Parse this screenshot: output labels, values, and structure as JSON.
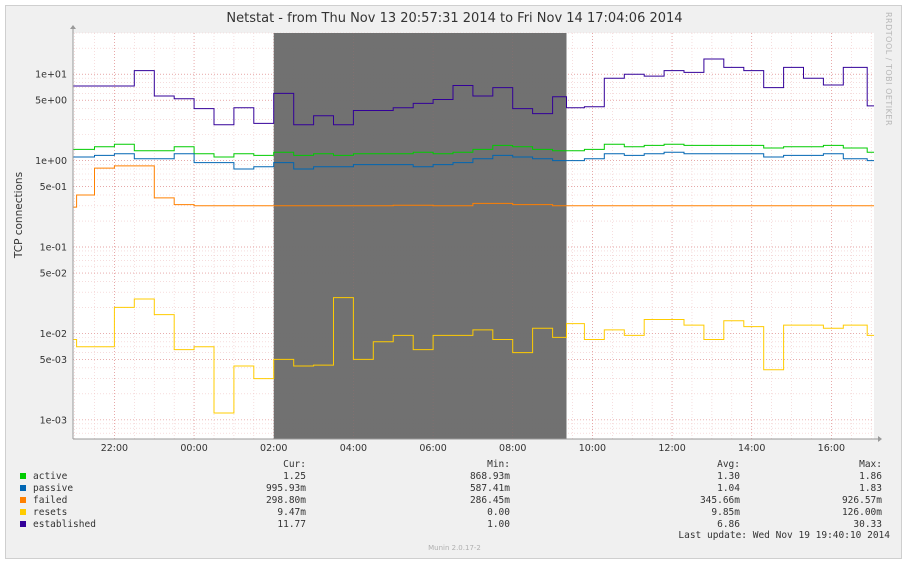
{
  "title": "Netstat - from Thu Nov 13 20:57:31 2014 to Fri Nov 14 17:04:06 2014",
  "watermark": "RRDTOOL / TOBI OETIKER",
  "footer": "Munin 2.0.17-2",
  "last_update": "Last update: Wed Nov 19 19:40:10 2014",
  "legend": {
    "headers": {
      "cur": "Cur:",
      "min": "Min:",
      "avg": "Avg:",
      "max": "Max:"
    },
    "rows": [
      {
        "name": "active",
        "color": "#00cc00",
        "cur": "1.25",
        "min": "868.93m",
        "avg": "1.30",
        "max": "1.86"
      },
      {
        "name": "passive",
        "color": "#0066b3",
        "cur": "995.93m",
        "min": "587.41m",
        "avg": "1.04",
        "max": "1.83"
      },
      {
        "name": "failed",
        "color": "#ff8000",
        "cur": "298.80m",
        "min": "286.45m",
        "avg": "345.66m",
        "max": "926.57m"
      },
      {
        "name": "resets",
        "color": "#ffcc00",
        "cur": "9.47m",
        "min": "0.00",
        "avg": "9.85m",
        "max": "126.00m"
      },
      {
        "name": "established",
        "color": "#330099",
        "cur": "11.77",
        "min": "1.00",
        "avg": "6.86",
        "max": "30.33"
      }
    ]
  },
  "chart_data": {
    "type": "line",
    "title": "Netstat - from Thu Nov 13 20:57:31 2014 to Fri Nov 14 17:04:06 2014",
    "ylabel": "TCP connections",
    "xlabel": "",
    "yscale": "log",
    "ylim": [
      0.0006,
      30
    ],
    "xlim": [
      20.96,
      41.07
    ],
    "x_ticks": [
      {
        "x": 22,
        "label": "22:00"
      },
      {
        "x": 24,
        "label": "00:00"
      },
      {
        "x": 26,
        "label": "02:00"
      },
      {
        "x": 28,
        "label": "04:00"
      },
      {
        "x": 30,
        "label": "06:00"
      },
      {
        "x": 32,
        "label": "08:00"
      },
      {
        "x": 34,
        "label": "10:00"
      },
      {
        "x": 36,
        "label": "12:00"
      },
      {
        "x": 38,
        "label": "14:00"
      },
      {
        "x": 40,
        "label": "16:00"
      }
    ],
    "y_ticks": [
      {
        "y": 10,
        "label": "1e+01"
      },
      {
        "y": 5,
        "label": "5e+00"
      },
      {
        "y": 1,
        "label": "1e+00"
      },
      {
        "y": 0.5,
        "label": "5e-01"
      },
      {
        "y": 0.1,
        "label": "1e-01"
      },
      {
        "y": 0.05,
        "label": "5e-02"
      },
      {
        "y": 0.01,
        "label": "1e-02"
      },
      {
        "y": 0.005,
        "label": "5e-03"
      },
      {
        "y": 0.001,
        "label": "1e-03"
      }
    ],
    "grid": true,
    "highlight_band": {
      "x_start": 26.0,
      "x_end": 33.35,
      "color": "#6e6e6e"
    },
    "series": [
      {
        "name": "established",
        "color": "#330099",
        "x": [
          20.96,
          21.4,
          21.8,
          22.5,
          23.0,
          23.5,
          24.0,
          24.5,
          25.0,
          25.5,
          26.0,
          26.5,
          27.0,
          27.5,
          28.0,
          28.5,
          29.0,
          29.5,
          30.0,
          30.5,
          31.0,
          31.5,
          32.0,
          32.5,
          33.0,
          33.35,
          33.8,
          34.3,
          34.8,
          35.3,
          35.8,
          36.3,
          36.8,
          37.3,
          37.8,
          38.3,
          38.8,
          39.3,
          39.8,
          40.3,
          40.9
        ],
        "y": [
          7.3,
          7.3,
          7.3,
          11,
          5.6,
          5.2,
          4,
          2.6,
          4.1,
          2.7,
          6,
          2.6,
          3.3,
          2.6,
          3.8,
          3.8,
          4.1,
          4.6,
          5.1,
          7.4,
          5.6,
          7,
          4,
          3.5,
          5.5,
          4.1,
          4.2,
          9,
          10,
          9.5,
          11,
          10.5,
          15,
          12,
          11,
          7,
          12,
          9,
          7.5,
          12,
          4.3
        ]
      },
      {
        "name": "active",
        "color": "#00cc00",
        "x": [
          20.96,
          21.5,
          22.0,
          22.5,
          23.0,
          23.5,
          24.0,
          24.5,
          25.0,
          25.5,
          26.0,
          26.5,
          27.0,
          27.5,
          28.0,
          28.5,
          29.0,
          29.5,
          30.0,
          30.5,
          31.0,
          31.5,
          32.0,
          32.5,
          33.0,
          33.35,
          33.8,
          34.3,
          34.8,
          35.3,
          35.8,
          36.3,
          36.8,
          37.3,
          37.8,
          38.3,
          38.8,
          39.3,
          39.8,
          40.3,
          40.9
        ],
        "y": [
          1.35,
          1.45,
          1.55,
          1.3,
          1.3,
          1.45,
          1.2,
          1.1,
          1.2,
          1.15,
          1.25,
          1.15,
          1.2,
          1.15,
          1.2,
          1.2,
          1.2,
          1.25,
          1.2,
          1.25,
          1.35,
          1.5,
          1.45,
          1.35,
          1.3,
          1.3,
          1.35,
          1.55,
          1.45,
          1.5,
          1.55,
          1.5,
          1.5,
          1.5,
          1.5,
          1.4,
          1.45,
          1.45,
          1.5,
          1.4,
          1.25
        ]
      },
      {
        "name": "passive",
        "color": "#0066b3",
        "x": [
          20.96,
          21.5,
          22.0,
          22.5,
          23.0,
          23.5,
          24.0,
          24.5,
          25.0,
          25.5,
          26.0,
          26.5,
          27.0,
          27.5,
          28.0,
          28.5,
          29.0,
          29.5,
          30.0,
          30.5,
          31.0,
          31.5,
          32.0,
          32.5,
          33.0,
          33.35,
          33.8,
          34.3,
          34.8,
          35.3,
          35.8,
          36.3,
          36.8,
          37.3,
          37.8,
          38.3,
          38.8,
          39.3,
          39.8,
          40.3,
          40.9
        ],
        "y": [
          1.1,
          1.15,
          1.2,
          1.05,
          1.05,
          1.2,
          0.95,
          0.95,
          0.8,
          0.85,
          0.95,
          0.8,
          0.85,
          0.85,
          0.9,
          0.9,
          0.9,
          0.85,
          0.9,
          0.95,
          1.05,
          1.15,
          1.1,
          1.05,
          1.0,
          1.0,
          1.05,
          1.2,
          1.15,
          1.2,
          1.25,
          1.2,
          1.2,
          1.2,
          1.2,
          1.1,
          1.15,
          1.15,
          1.2,
          1.05,
          1.0
        ]
      },
      {
        "name": "failed",
        "color": "#ff8000",
        "x": [
          20.96,
          21.05,
          21.5,
          22.0,
          22.5,
          23.0,
          23.5,
          24.0,
          24.5,
          25.0,
          26.0,
          27.0,
          28.0,
          29.0,
          30.0,
          31.0,
          32.0,
          33.0,
          33.35,
          33.8,
          34.3,
          35.0,
          36.0,
          37.0,
          38.0,
          39.0,
          40.0,
          40.9
        ],
        "y": [
          0.29,
          0.4,
          0.82,
          0.87,
          0.87,
          0.37,
          0.31,
          0.3,
          0.3,
          0.3,
          0.3,
          0.3,
          0.3,
          0.305,
          0.3,
          0.32,
          0.31,
          0.3,
          0.3,
          0.3,
          0.3,
          0.3,
          0.3,
          0.3,
          0.3,
          0.3,
          0.3,
          0.3
        ]
      },
      {
        "name": "resets",
        "color": "#ffcc00",
        "x": [
          20.96,
          21.05,
          21.5,
          22.0,
          22.5,
          23.0,
          23.5,
          24.0,
          24.5,
          25.0,
          25.5,
          26.0,
          26.5,
          27.0,
          27.5,
          28.0,
          28.5,
          29.0,
          29.5,
          30.0,
          30.5,
          31.0,
          31.5,
          32.0,
          32.5,
          33.0,
          33.35,
          33.8,
          34.3,
          34.8,
          35.3,
          35.8,
          36.3,
          36.8,
          37.3,
          37.8,
          38.3,
          38.8,
          39.3,
          39.8,
          40.3,
          40.9
        ],
        "y": [
          0.0085,
          0.007,
          0.007,
          0.02,
          0.025,
          0.0165,
          0.0065,
          0.007,
          0.0012,
          0.0042,
          0.003,
          0.005,
          0.0042,
          0.0043,
          0.026,
          0.005,
          0.008,
          0.0095,
          0.0065,
          0.0095,
          0.0095,
          0.011,
          0.0085,
          0.006,
          0.0115,
          0.009,
          0.013,
          0.0085,
          0.011,
          0.0095,
          0.0145,
          0.0145,
          0.0125,
          0.0085,
          0.014,
          0.012,
          0.0038,
          0.0125,
          0.0125,
          0.0115,
          0.0125,
          0.0095
        ]
      }
    ]
  }
}
